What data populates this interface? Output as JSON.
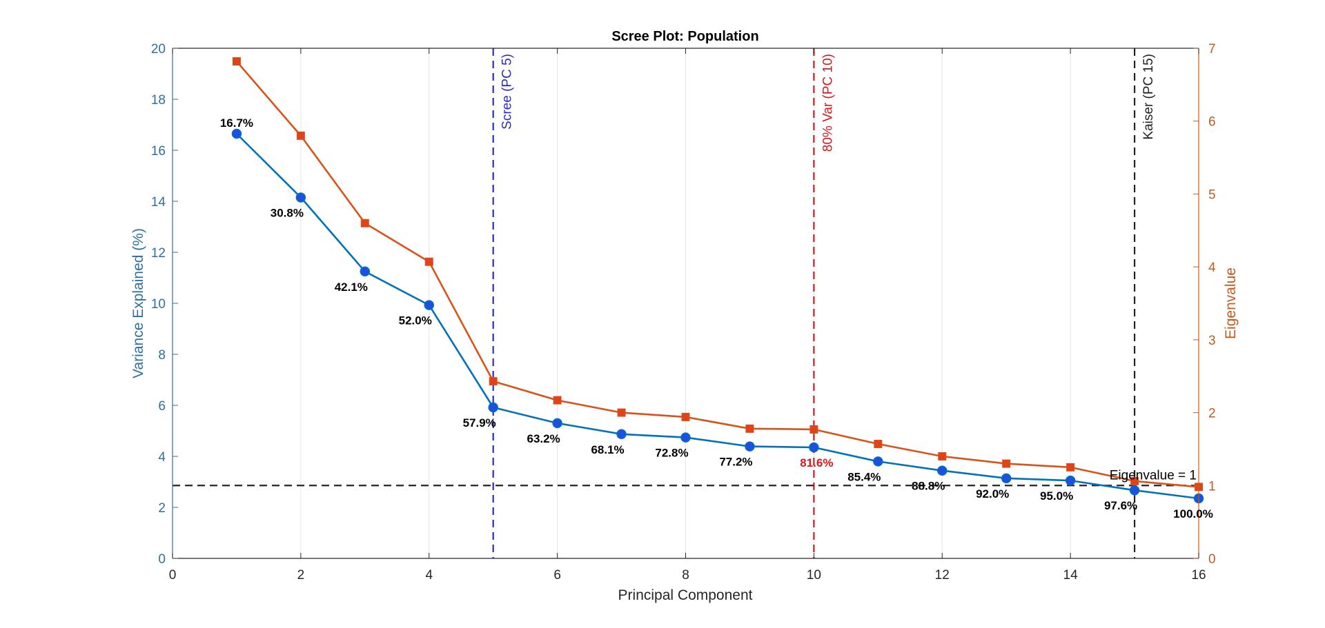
{
  "chart_data": {
    "type": "line",
    "title": "Scree Plot: Population",
    "xlabel": "Principal Component",
    "ylabel_left": "Variance Explained (%)",
    "ylabel_right": "Eigenvalue",
    "xlim": [
      0,
      16
    ],
    "ylim_left": [
      0,
      20
    ],
    "ylim_right": [
      0,
      7
    ],
    "xticks": [
      0,
      2,
      4,
      6,
      8,
      10,
      12,
      14,
      16
    ],
    "yticks_left": [
      0,
      2,
      4,
      6,
      8,
      10,
      12,
      14,
      16,
      18,
      20
    ],
    "yticks_right": [
      0,
      1,
      2,
      3,
      4,
      5,
      6,
      7
    ],
    "x": [
      1,
      2,
      3,
      4,
      5,
      6,
      7,
      8,
      9,
      10,
      11,
      12,
      13,
      14,
      15,
      16
    ],
    "series": [
      {
        "name": "Variance Explained (%)",
        "axis": "left",
        "color": "#0072BD",
        "marker": "circle",
        "marker_color": "#1f4fe0",
        "values": [
          16.65,
          14.15,
          11.25,
          9.93,
          5.92,
          5.3,
          4.87,
          4.74,
          4.39,
          4.35,
          3.8,
          3.44,
          3.14,
          3.05,
          2.67,
          2.35
        ]
      },
      {
        "name": "Eigenvalue",
        "axis": "right",
        "color": "#D95319",
        "marker": "square",
        "marker_color": "#e0421c",
        "values": [
          6.82,
          5.8,
          4.6,
          4.07,
          2.43,
          2.17,
          2.0,
          1.94,
          1.78,
          1.77,
          1.57,
          1.4,
          1.3,
          1.25,
          1.06,
          0.98
        ]
      }
    ],
    "annotations": [
      {
        "x": 1,
        "text": "16.7%",
        "pos": "above",
        "color": "#000000"
      },
      {
        "x": 2,
        "text": "30.8%",
        "pos": "below",
        "color": "#000000"
      },
      {
        "x": 3,
        "text": "42.1%",
        "pos": "below",
        "color": "#000000"
      },
      {
        "x": 4,
        "text": "52.0%",
        "pos": "below",
        "color": "#000000"
      },
      {
        "x": 5,
        "text": "57.9%",
        "pos": "below",
        "color": "#000000"
      },
      {
        "x": 6,
        "text": "63.2%",
        "pos": "below",
        "color": "#000000"
      },
      {
        "x": 7,
        "text": "68.1%",
        "pos": "below",
        "color": "#000000"
      },
      {
        "x": 8,
        "text": "72.8%",
        "pos": "below",
        "color": "#000000"
      },
      {
        "x": 9,
        "text": "77.2%",
        "pos": "below",
        "color": "#000000"
      },
      {
        "x": 10,
        "text": "81.6%",
        "pos": "below",
        "color": "#D7191C"
      },
      {
        "x": 11,
        "text": "85.4%",
        "pos": "below",
        "color": "#000000"
      },
      {
        "x": 12,
        "text": "88.8%",
        "pos": "below",
        "color": "#000000"
      },
      {
        "x": 13,
        "text": "92.0%",
        "pos": "below",
        "color": "#000000"
      },
      {
        "x": 14,
        "text": "95.0%",
        "pos": "below",
        "color": "#000000"
      },
      {
        "x": 15,
        "text": "97.6%",
        "pos": "below",
        "color": "#000000"
      },
      {
        "x": 16,
        "text": "100.0%",
        "pos": "below",
        "color": "#000000"
      }
    ],
    "vlines": [
      {
        "x": 5,
        "label": "Scree (PC 5)",
        "color": "#2B2BC8"
      },
      {
        "x": 10,
        "label": "80% Var (PC 10)",
        "color": "#D7191C"
      },
      {
        "x": 15,
        "label": "Kaiser (PC 15)",
        "color": "#222222"
      }
    ],
    "hline": {
      "axis": "right",
      "y": 1,
      "label": "Eigenvalue = 1",
      "color": "#222222"
    },
    "grid": "x-only"
  },
  "colors": {
    "left_axis": "#2F6F9F",
    "right_axis": "#C55A1E",
    "grid": "#e6e6e6",
    "text": "#262626"
  }
}
